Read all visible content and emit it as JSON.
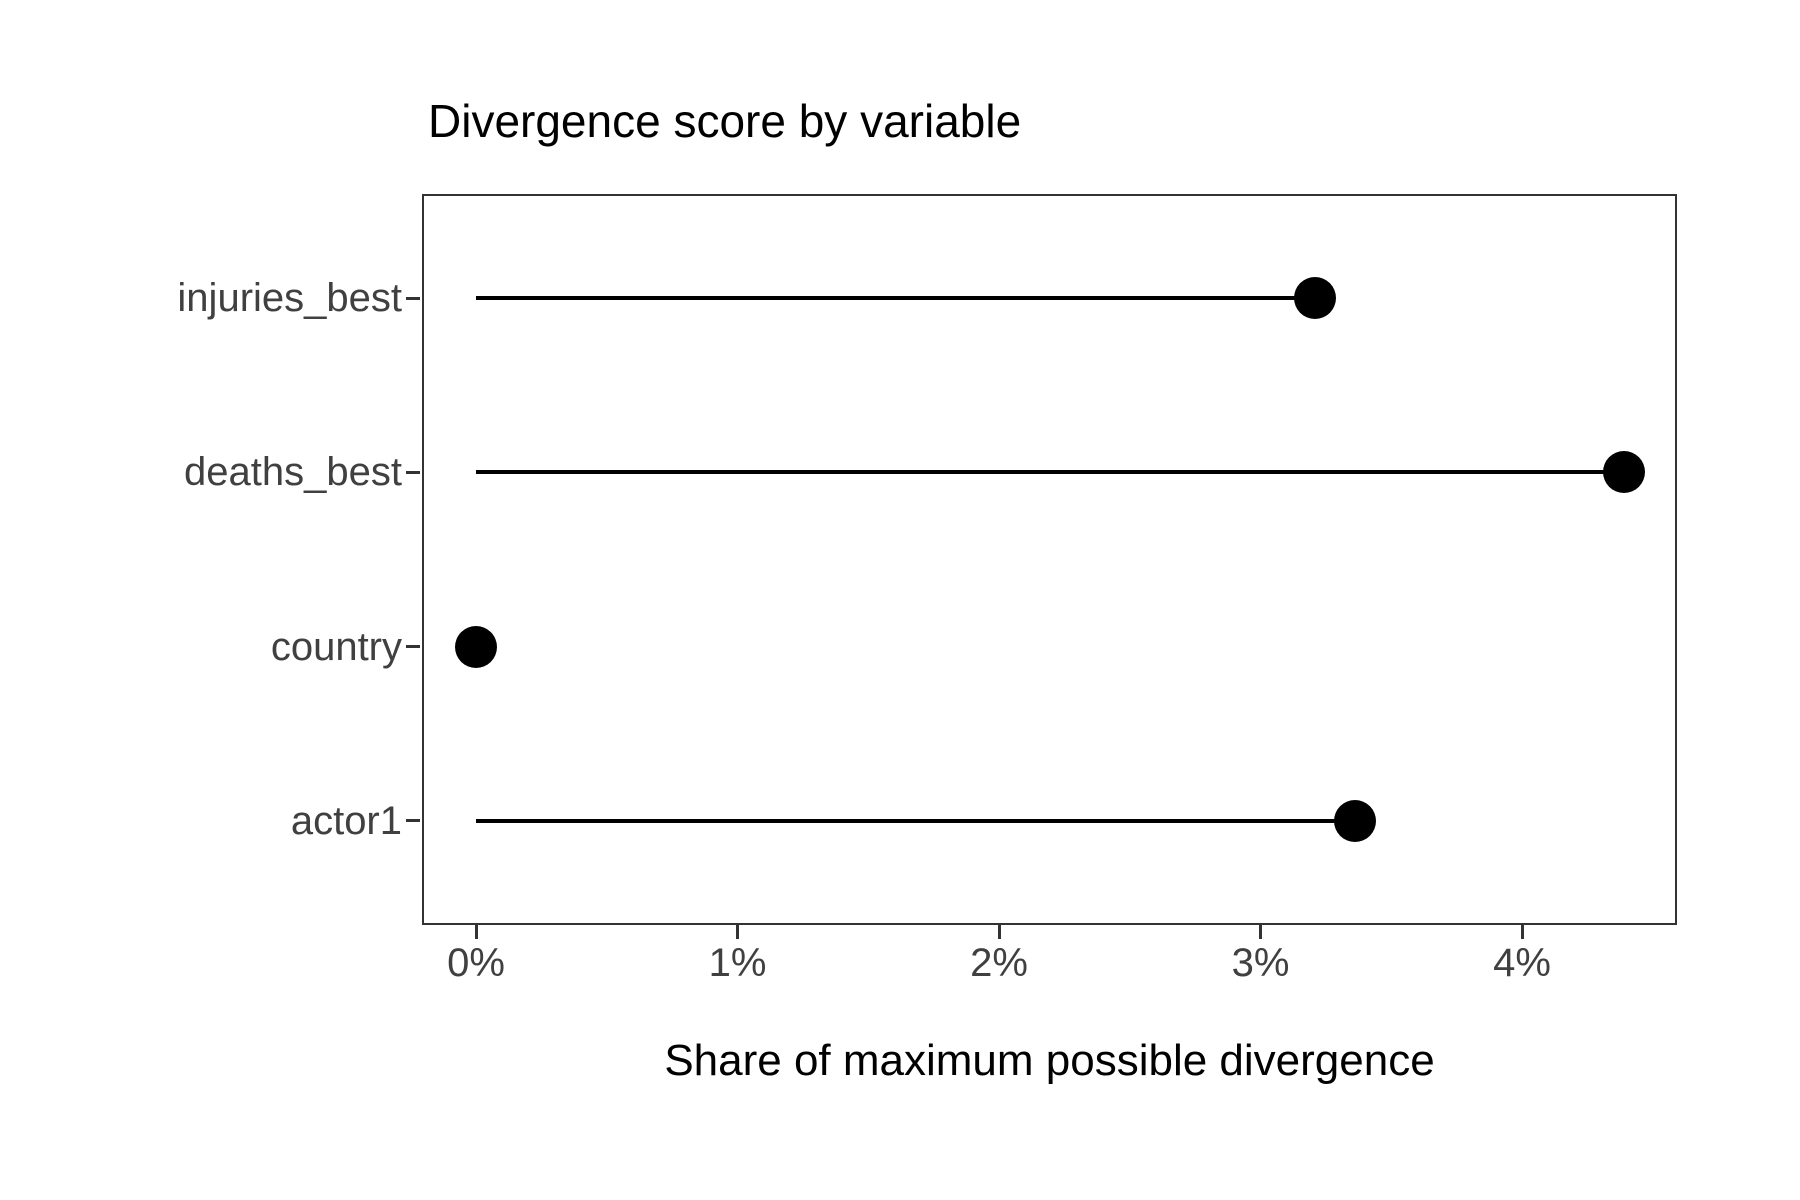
{
  "title": "Divergence score by variable",
  "chart_data": {
    "type": "bar",
    "style": "lollipop",
    "orientation": "horizontal",
    "title": "Divergence score by variable",
    "xlabel": "Share of maximum possible divergence",
    "ylabel": "",
    "categories": [
      "injuries_best",
      "deaths_best",
      "country",
      "actor1"
    ],
    "values_pct": [
      3.21,
      4.39,
      0.0,
      3.36
    ],
    "x_tick_labels": [
      "0%",
      "1%",
      "2%",
      "3%",
      "4%"
    ],
    "x_tick_values": [
      0,
      1,
      2,
      3,
      4
    ],
    "xlim_pct": [
      -0.21,
      4.59
    ],
    "grid": false,
    "legend": "none",
    "colors": {
      "stem": "#000000",
      "dot": "#000000",
      "axis_text": "#404040",
      "panel_border": "#333333",
      "background": "#ffffff"
    }
  }
}
